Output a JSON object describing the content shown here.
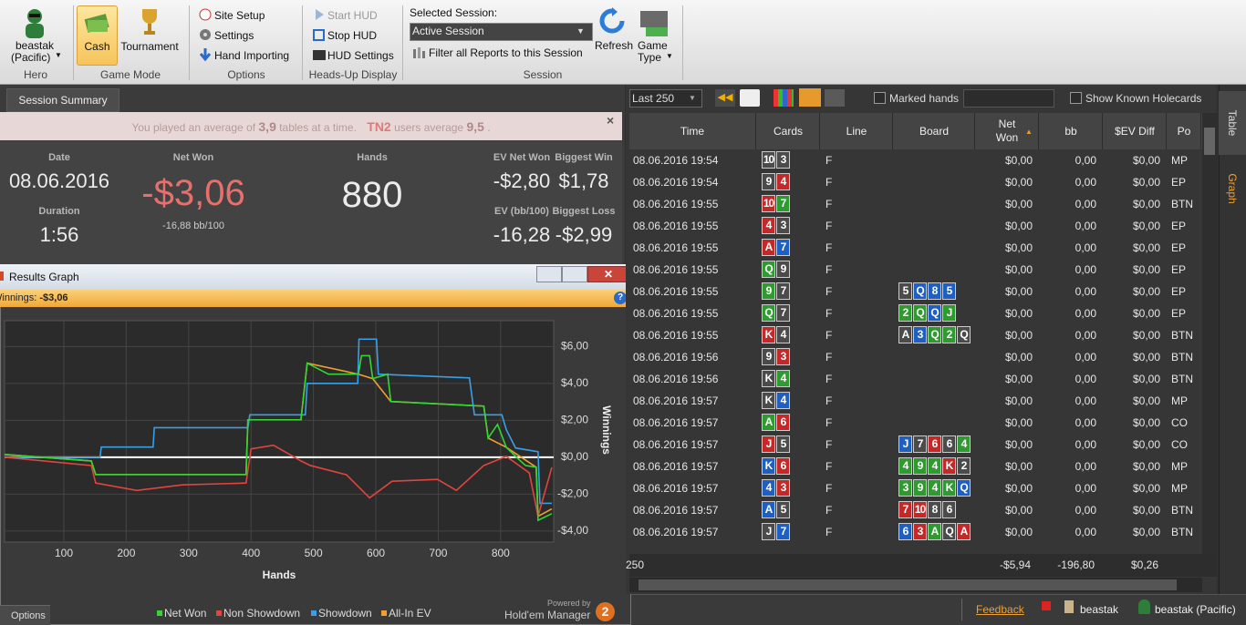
{
  "toolbar": {
    "hero": {
      "name": "beastak",
      "site": "(Pacific)",
      "group": "Hero"
    },
    "game_mode": {
      "cash": "Cash",
      "tournament": "Tournament",
      "group": "Game Mode"
    },
    "options": {
      "items": [
        "Site Setup",
        "Settings",
        "Hand Importing"
      ],
      "group": "Options"
    },
    "hud": {
      "items": [
        "Start HUD",
        "Stop HUD",
        "HUD Settings"
      ],
      "group": "Heads-Up Display"
    },
    "session": {
      "label": "Selected Session:",
      "selected": "Active Session",
      "filter": "Filter all Reports to this Session",
      "refresh": "Refresh",
      "game": "Game",
      "type": "Type",
      "group": "Session"
    }
  },
  "session_summary": {
    "tab": "Session Summary",
    "notice": {
      "text_1": "You played an average of",
      "tables": "3,9",
      "text_2": "tables at a time.",
      "brand": "TN2",
      "text_3": "users average",
      "average": "9,5",
      "text_4": "."
    },
    "date": {
      "label": "Date",
      "value": "08.06.2016"
    },
    "duration": {
      "label": "Duration",
      "value": "1:56"
    },
    "net_won": {
      "label": "Net Won",
      "value": "-$3,06",
      "sub": "-16,88 bb/100"
    },
    "hands": {
      "label": "Hands",
      "value": "880"
    },
    "ev_net_won": {
      "label": "EV Net Won",
      "value": "-$2,80"
    },
    "biggest_win": {
      "label": "Biggest Win",
      "value": "$1,78"
    },
    "ev_bb100": {
      "label": "EV (bb/100)",
      "value": "-16,28"
    },
    "biggest_loss": {
      "label": "Biggest Loss",
      "value": "-$2,99"
    }
  },
  "graph_window": {
    "title": "Results Graph",
    "winnings_label": "Winnings:",
    "winnings_value": "-$3,06",
    "options": "Options",
    "powered_by": "Powered by",
    "brand": "Hold'em Manager",
    "brand_version": "2"
  },
  "chart_data": {
    "type": "line",
    "x_label": "Hands",
    "y_label": "Winnings",
    "xlim": [
      5,
      885
    ],
    "ylim": [
      -4.6,
      7.4
    ],
    "xticks": [
      100,
      200,
      300,
      400,
      500,
      600,
      700,
      800
    ],
    "yticks": [
      {
        "value": -4,
        "label": "-$4,00"
      },
      {
        "value": -2,
        "label": "-$2,00"
      },
      {
        "value": 0,
        "label": "$0,00"
      },
      {
        "value": 2,
        "label": "$2,00"
      },
      {
        "value": 4,
        "label": "$4,00"
      },
      {
        "value": 6,
        "label": "$6,00"
      }
    ],
    "grid": true,
    "series": [
      {
        "name": "Net Won",
        "color": "#33d633",
        "x": [
          5,
          144,
          151,
          392,
          395,
          480,
          490,
          524,
          572,
          577,
          590,
          595,
          619,
          624,
          773,
          780,
          795,
          809,
          827,
          840,
          857,
          860,
          882
        ],
        "values": [
          0.15,
          -0.2,
          -0.94,
          -0.94,
          2.03,
          2.03,
          5.1,
          4.5,
          4.5,
          5.5,
          5.5,
          4.26,
          4.5,
          3.02,
          2.77,
          1.04,
          1.78,
          0.54,
          -0.05,
          -0.45,
          -0.54,
          -3.42,
          -3.06
        ]
      },
      {
        "name": "Non Showdown",
        "color": "#e0453f",
        "x": [
          5,
          144,
          151,
          217,
          290,
          392,
          400,
          436,
          480,
          495,
          553,
          590,
          626,
          699,
          729,
          773,
          809,
          846,
          860,
          882
        ],
        "values": [
          0,
          -0.45,
          -1.4,
          -1.8,
          -1.5,
          -1.4,
          0.45,
          0.65,
          -0.2,
          -0.45,
          -0.95,
          -2.2,
          -1.3,
          -1.2,
          -1.8,
          -0.45,
          0.05,
          -0.85,
          -3.2,
          -0.55
        ]
      },
      {
        "name": "Showdown",
        "color": "#3a9fe6",
        "x": [
          5,
          158,
          160,
          243,
          245,
          395,
          398,
          487,
          490,
          571,
          573,
          601,
          604,
          750,
          758,
          802,
          809,
          824,
          860,
          863,
          882
        ],
        "values": [
          0,
          0,
          0.55,
          0.55,
          1.6,
          1.6,
          2.3,
          2.3,
          4.0,
          4.0,
          6.4,
          6.4,
          4.5,
          4.3,
          2.3,
          2.3,
          1.5,
          0.5,
          0.3,
          -2.5,
          -2.5
        ]
      },
      {
        "name": "All-In EV",
        "color": "#f0a030",
        "x": [
          5,
          144,
          151,
          392,
          395,
          480,
          490,
          572,
          595,
          624,
          773,
          780,
          809,
          857,
          860,
          882
        ],
        "values": [
          0.15,
          -0.2,
          -0.94,
          -0.94,
          2.03,
          2.03,
          5.1,
          4.5,
          4.26,
          3.02,
          2.77,
          1.04,
          0.54,
          -0.54,
          -3.2,
          -2.8
        ]
      }
    ]
  },
  "table": {
    "filters": {
      "range": "Last 250",
      "marked": "Marked hands",
      "known": "Show Known Holecards"
    },
    "columns": [
      "Time",
      "Cards",
      "Line",
      "Board",
      "Net Won",
      "bb",
      "$EV Diff",
      "Po"
    ],
    "suit_colors": {
      "s": "#4b4b4b",
      "h": "#c62828",
      "d": "#1e5fc4",
      "c": "#2e9b2e"
    },
    "rows": [
      {
        "time": "08.06.2016 19:54",
        "cards": [
          {
            "rank": "10",
            "suit": "s"
          },
          {
            "rank": "3",
            "suit": "s"
          }
        ],
        "line": "F",
        "board": [],
        "net_won": "$0,00",
        "bb": "0,00",
        "ev_diff": "$0,00",
        "position": "MP"
      },
      {
        "time": "08.06.2016 19:54",
        "cards": [
          {
            "rank": "9",
            "suit": "s"
          },
          {
            "rank": "4",
            "suit": "h"
          }
        ],
        "line": "F",
        "board": [],
        "net_won": "$0,00",
        "bb": "0,00",
        "ev_diff": "$0,00",
        "position": "EP"
      },
      {
        "time": "08.06.2016 19:55",
        "cards": [
          {
            "rank": "10",
            "suit": "h"
          },
          {
            "rank": "7",
            "suit": "c"
          }
        ],
        "line": "F",
        "board": [],
        "net_won": "$0,00",
        "bb": "0,00",
        "ev_diff": "$0,00",
        "position": "BTN"
      },
      {
        "time": "08.06.2016 19:55",
        "cards": [
          {
            "rank": "4",
            "suit": "h"
          },
          {
            "rank": "3",
            "suit": "s"
          }
        ],
        "line": "F",
        "board": [],
        "net_won": "$0,00",
        "bb": "0,00",
        "ev_diff": "$0,00",
        "position": "EP"
      },
      {
        "time": "08.06.2016 19:55",
        "cards": [
          {
            "rank": "A",
            "suit": "h"
          },
          {
            "rank": "7",
            "suit": "d"
          }
        ],
        "line": "F",
        "board": [],
        "net_won": "$0,00",
        "bb": "0,00",
        "ev_diff": "$0,00",
        "position": "EP"
      },
      {
        "time": "08.06.2016 19:55",
        "cards": [
          {
            "rank": "Q",
            "suit": "c"
          },
          {
            "rank": "9",
            "suit": "s"
          }
        ],
        "line": "F",
        "board": [],
        "net_won": "$0,00",
        "bb": "0,00",
        "ev_diff": "$0,00",
        "position": "EP"
      },
      {
        "time": "08.06.2016 19:55",
        "cards": [
          {
            "rank": "9",
            "suit": "c"
          },
          {
            "rank": "7",
            "suit": "s"
          }
        ],
        "line": "F",
        "board": [
          {
            "rank": "5",
            "suit": "s"
          },
          {
            "rank": "Q",
            "suit": "d"
          },
          {
            "rank": "8",
            "suit": "d"
          },
          {
            "rank": "5",
            "suit": "d"
          }
        ],
        "net_won": "$0,00",
        "bb": "0,00",
        "ev_diff": "$0,00",
        "position": "EP"
      },
      {
        "time": "08.06.2016 19:55",
        "cards": [
          {
            "rank": "Q",
            "suit": "c"
          },
          {
            "rank": "7",
            "suit": "s"
          }
        ],
        "line": "F",
        "board": [
          {
            "rank": "2",
            "suit": "c"
          },
          {
            "rank": "Q",
            "suit": "c"
          },
          {
            "rank": "Q",
            "suit": "d"
          },
          {
            "rank": "J",
            "suit": "c"
          }
        ],
        "net_won": "$0,00",
        "bb": "0,00",
        "ev_diff": "$0,00",
        "position": "EP"
      },
      {
        "time": "08.06.2016 19:55",
        "cards": [
          {
            "rank": "K",
            "suit": "h"
          },
          {
            "rank": "4",
            "suit": "s"
          }
        ],
        "line": "F",
        "board": [
          {
            "rank": "A",
            "suit": "s"
          },
          {
            "rank": "3",
            "suit": "d"
          },
          {
            "rank": "Q",
            "suit": "c"
          },
          {
            "rank": "2",
            "suit": "c"
          },
          {
            "rank": "Q",
            "suit": "s"
          }
        ],
        "net_won": "$0,00",
        "bb": "0,00",
        "ev_diff": "$0,00",
        "position": "BTN"
      },
      {
        "time": "08.06.2016 19:56",
        "cards": [
          {
            "rank": "9",
            "suit": "s"
          },
          {
            "rank": "3",
            "suit": "h"
          }
        ],
        "line": "F",
        "board": [],
        "net_won": "$0,00",
        "bb": "0,00",
        "ev_diff": "$0,00",
        "position": "BTN"
      },
      {
        "time": "08.06.2016 19:56",
        "cards": [
          {
            "rank": "K",
            "suit": "s"
          },
          {
            "rank": "4",
            "suit": "c"
          }
        ],
        "line": "F",
        "board": [],
        "net_won": "$0,00",
        "bb": "0,00",
        "ev_diff": "$0,00",
        "position": "BTN"
      },
      {
        "time": "08.06.2016 19:57",
        "cards": [
          {
            "rank": "K",
            "suit": "s"
          },
          {
            "rank": "4",
            "suit": "d"
          }
        ],
        "line": "F",
        "board": [],
        "net_won": "$0,00",
        "bb": "0,00",
        "ev_diff": "$0,00",
        "position": "MP"
      },
      {
        "time": "08.06.2016 19:57",
        "cards": [
          {
            "rank": "A",
            "suit": "c"
          },
          {
            "rank": "6",
            "suit": "h"
          }
        ],
        "line": "F",
        "board": [],
        "net_won": "$0,00",
        "bb": "0,00",
        "ev_diff": "$0,00",
        "position": "CO"
      },
      {
        "time": "08.06.2016 19:57",
        "cards": [
          {
            "rank": "J",
            "suit": "h"
          },
          {
            "rank": "5",
            "suit": "s"
          }
        ],
        "line": "F",
        "board": [
          {
            "rank": "J",
            "suit": "d"
          },
          {
            "rank": "7",
            "suit": "s"
          },
          {
            "rank": "6",
            "suit": "h"
          },
          {
            "rank": "6",
            "suit": "s"
          },
          {
            "rank": "4",
            "suit": "c"
          }
        ],
        "net_won": "$0,00",
        "bb": "0,00",
        "ev_diff": "$0,00",
        "position": "CO"
      },
      {
        "time": "08.06.2016 19:57",
        "cards": [
          {
            "rank": "K",
            "suit": "d"
          },
          {
            "rank": "6",
            "suit": "h"
          }
        ],
        "line": "F",
        "board": [
          {
            "rank": "4",
            "suit": "c"
          },
          {
            "rank": "9",
            "suit": "c"
          },
          {
            "rank": "4",
            "suit": "c"
          },
          {
            "rank": "K",
            "suit": "h"
          },
          {
            "rank": "2",
            "suit": "s"
          }
        ],
        "net_won": "$0,00",
        "bb": "0,00",
        "ev_diff": "$0,00",
        "position": "MP"
      },
      {
        "time": "08.06.2016 19:57",
        "cards": [
          {
            "rank": "4",
            "suit": "d"
          },
          {
            "rank": "3",
            "suit": "h"
          }
        ],
        "line": "F",
        "board": [
          {
            "rank": "3",
            "suit": "c"
          },
          {
            "rank": "9",
            "suit": "c"
          },
          {
            "rank": "4",
            "suit": "c"
          },
          {
            "rank": "K",
            "suit": "c"
          },
          {
            "rank": "Q",
            "suit": "d"
          }
        ],
        "net_won": "$0,00",
        "bb": "0,00",
        "ev_diff": "$0,00",
        "position": "MP"
      },
      {
        "time": "08.06.2016 19:57",
        "cards": [
          {
            "rank": "A",
            "suit": "d"
          },
          {
            "rank": "5",
            "suit": "s"
          }
        ],
        "line": "F",
        "board": [
          {
            "rank": "7",
            "suit": "h"
          },
          {
            "rank": "10",
            "suit": "h"
          },
          {
            "rank": "8",
            "suit": "s"
          },
          {
            "rank": "6",
            "suit": "s"
          }
        ],
        "net_won": "$0,00",
        "bb": "0,00",
        "ev_diff": "$0,00",
        "position": "BTN"
      },
      {
        "time": "08.06.2016 19:57",
        "cards": [
          {
            "rank": "J",
            "suit": "s"
          },
          {
            "rank": "7",
            "suit": "d"
          }
        ],
        "line": "F",
        "board": [
          {
            "rank": "6",
            "suit": "d"
          },
          {
            "rank": "3",
            "suit": "h"
          },
          {
            "rank": "A",
            "suit": "c"
          },
          {
            "rank": "Q",
            "suit": "s"
          },
          {
            "rank": "A",
            "suit": "h"
          }
        ],
        "net_won": "$0,00",
        "bb": "0,00",
        "ev_diff": "$0,00",
        "position": "BTN"
      }
    ],
    "totals": {
      "count": "250",
      "net_won": "-$5,94",
      "bb": "-196,80",
      "ev_diff": "$0,26"
    }
  },
  "side_tabs": [
    "Table",
    "Graph"
  ],
  "status_bar": {
    "feedback": "Feedback",
    "user": "beastak",
    "hero": "beastak (Pacific)"
  }
}
